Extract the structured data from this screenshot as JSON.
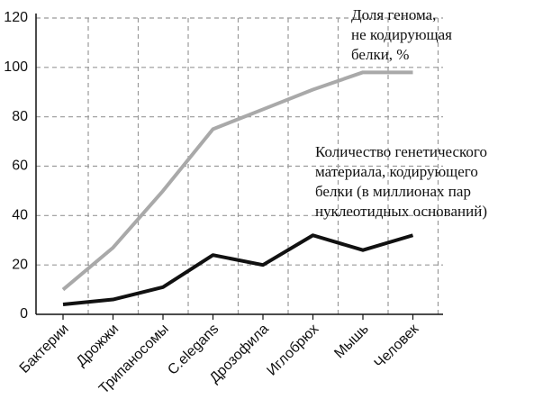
{
  "chart_data": {
    "type": "line",
    "categories": [
      "Бактерии",
      "Дрожжи",
      "Трипаносомы",
      "C.elegans",
      "Дрозофила",
      "Иглобрюх",
      "Мышь",
      "Человек"
    ],
    "series": [
      {
        "name_lines": [
          "Доля генома,",
          "не кодирующая",
          "белки,  %"
        ],
        "color": "#a9a9a9",
        "values": [
          10,
          27,
          50,
          75,
          83,
          91,
          98,
          98
        ]
      },
      {
        "name_lines": [
          "Количество генетического",
          "материала,  кодирующего",
          "белки (в миллионах пар",
          "нуклеотидных оснований)"
        ],
        "color": "#111111",
        "values": [
          4,
          6,
          11,
          24,
          20,
          32,
          26,
          32
        ]
      }
    ],
    "ylim": [
      0,
      120
    ],
    "yticks": [
      0,
      20,
      40,
      60,
      80,
      100,
      120
    ],
    "grid": true
  }
}
